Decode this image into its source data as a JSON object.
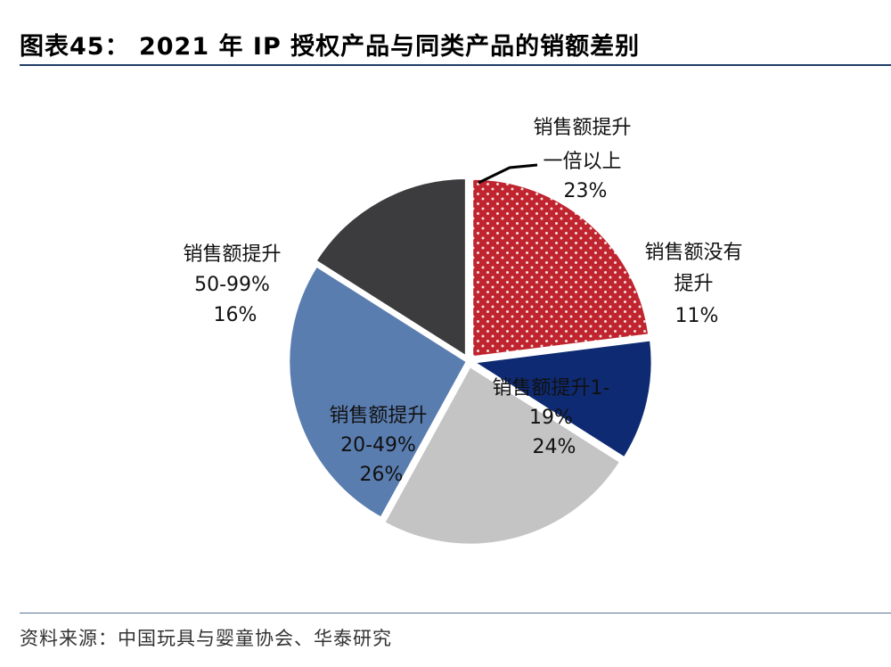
{
  "header": {
    "title": "图表45： 2021 年 IP 授权产品与同类产品的销额差别"
  },
  "footer": {
    "source": "资料来源：中国玩具与婴童协会、华泰研究"
  },
  "colors": {
    "rule": "#1f3d66",
    "slice_red": "#c0242e",
    "slice_navy": "#0e2a72",
    "slice_grey": "#c4c4c4",
    "slice_blue": "#5a7db0",
    "slice_dark": "#3c3c3e",
    "dot": "#f2dede"
  },
  "chart_data": {
    "type": "pie",
    "title": "2021 年 IP 授权产品与同类产品的销额差别",
    "unit": "%",
    "start": "12 o'clock, clockwise",
    "slices": [
      {
        "key": "double",
        "lines": [
          "销售额提升",
          "一倍以上"
        ],
        "value": 23,
        "pct": "23%",
        "color": "#c0242e",
        "pattern": "dots"
      },
      {
        "key": "none",
        "lines": [
          "销售额没有",
          "提升"
        ],
        "value": 11,
        "pct": "11%",
        "color": "#0e2a72"
      },
      {
        "key": "1-19",
        "lines": [
          "销售额提升1-",
          "19%"
        ],
        "value": 24,
        "pct": "24%",
        "color": "#c4c4c4"
      },
      {
        "key": "20-49",
        "lines": [
          "销售额提升",
          "20-49%"
        ],
        "value": 26,
        "pct": "26%",
        "color": "#5a7db0"
      },
      {
        "key": "50-99",
        "lines": [
          "销售额提升",
          "50-99%"
        ],
        "value": 16,
        "pct": "16%",
        "color": "#3c3c3e"
      }
    ]
  }
}
